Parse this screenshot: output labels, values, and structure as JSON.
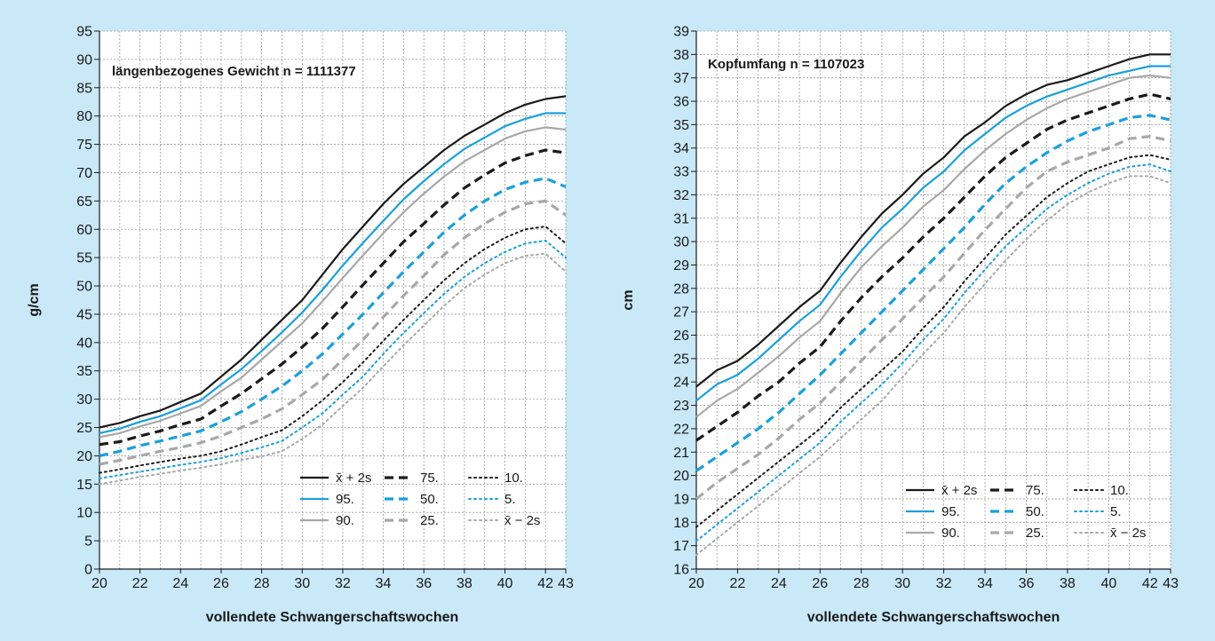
{
  "chart_data": [
    {
      "type": "line",
      "title": "längenbezogenes Gewicht n = 1111377",
      "xlabel": "vollendete Schwangerschaftswochen",
      "ylabel": "g/cm",
      "xlim": [
        20,
        43
      ],
      "ylim": [
        0,
        95
      ],
      "x_ticks": [
        "20",
        "22",
        "24",
        "26",
        "28",
        "30",
        "32",
        "34",
        "36",
        "38",
        "40",
        "42",
        "43"
      ],
      "y_ticks": [
        "0",
        "5",
        "10",
        "15",
        "20",
        "25",
        "30",
        "35",
        "40",
        "45",
        "50",
        "55",
        "60",
        "65",
        "70",
        "75",
        "80",
        "85",
        "90",
        "95"
      ],
      "grid": true,
      "legend_position": "bottom-right",
      "x": [
        20,
        21,
        22,
        23,
        24,
        25,
        26,
        27,
        28,
        29,
        30,
        31,
        32,
        33,
        34,
        35,
        36,
        37,
        38,
        39,
        40,
        41,
        42,
        43
      ],
      "series": [
        {
          "name": "x̄ + 2s",
          "color": "#1a1a1a",
          "dash": "solid",
          "values": [
            25,
            25.8,
            27,
            28,
            29.5,
            31,
            34,
            37,
            40.5,
            44,
            47.5,
            52,
            56.5,
            60.5,
            64.5,
            68,
            71,
            74,
            76.5,
            78.5,
            80.5,
            82,
            83,
            83.5
          ]
        },
        {
          "name": "95.",
          "color": "#1aa0dc",
          "dash": "solid",
          "values": [
            24,
            24.8,
            26,
            27,
            28.4,
            29.8,
            32.6,
            35.3,
            38.5,
            41.8,
            45.3,
            49.3,
            53.6,
            57.6,
            61.5,
            65.3,
            68.5,
            71.5,
            74.2,
            76.2,
            78.2,
            79.5,
            80.5,
            80.5
          ]
        },
        {
          "name": "90.",
          "color": "#a8a8a8",
          "dash": "solid",
          "values": [
            23.3,
            24,
            25.2,
            26.2,
            27.5,
            28.8,
            31.4,
            33.8,
            37,
            40.2,
            43.4,
            47.3,
            51.4,
            55.4,
            59.3,
            63,
            66.3,
            69.3,
            72,
            74,
            76,
            77.3,
            78,
            77.6
          ]
        },
        {
          "name": "75.",
          "color": "#1a1a1a",
          "dash": "dash-heavy",
          "values": [
            22,
            22.5,
            23.5,
            24.4,
            25.5,
            26.5,
            28.8,
            31,
            33.6,
            36.2,
            39.2,
            42.5,
            46.3,
            50.2,
            54,
            57.8,
            61,
            64.3,
            67.3,
            69.6,
            71.7,
            73,
            74,
            73.5
          ]
        },
        {
          "name": "50.",
          "color": "#1aa0dc",
          "dash": "dash-heavy",
          "values": [
            20,
            20.8,
            21.8,
            22.6,
            23.5,
            24.4,
            26,
            27.8,
            30,
            32.3,
            35,
            38,
            41.5,
            45,
            48.8,
            52.5,
            56,
            59.5,
            62.5,
            65,
            67,
            68.3,
            69,
            67.5
          ]
        },
        {
          "name": "25.",
          "color": "#a8a8a8",
          "dash": "dash-heavy",
          "values": [
            18.5,
            19.2,
            20,
            20.8,
            21.5,
            22.3,
            23.5,
            25,
            26.5,
            28.3,
            30.8,
            33.5,
            37,
            40.5,
            44.5,
            48.3,
            51.8,
            55.5,
            58.5,
            61,
            63,
            64.5,
            65,
            62.5
          ]
        },
        {
          "name": "10.",
          "color": "#1a1a1a",
          "dash": "dotted",
          "values": [
            17,
            17.6,
            18.3,
            18.9,
            19.5,
            20,
            20.8,
            22,
            23.3,
            24.5,
            27,
            29.8,
            33,
            36.5,
            40.3,
            44,
            47.5,
            51,
            54,
            56.5,
            58.5,
            60,
            60.5,
            57.5
          ]
        },
        {
          "name": "5.",
          "color": "#1aa0dc",
          "dash": "dotted",
          "values": [
            16,
            16.6,
            17.2,
            17.8,
            18.4,
            18.9,
            19.6,
            20.5,
            21.5,
            22.6,
            25,
            27.5,
            30.8,
            34,
            38,
            41.7,
            45.2,
            48.6,
            51.6,
            54,
            56,
            57.5,
            58,
            55
          ]
        },
        {
          "name": "x̄ − 2s",
          "color": "#a8a8a8",
          "dash": "dotted",
          "values": [
            15,
            15.6,
            16.3,
            16.8,
            17.4,
            17.9,
            18.5,
            19.3,
            19.9,
            20.8,
            23,
            25.5,
            28.8,
            32,
            35.8,
            39.5,
            43,
            46.5,
            49.6,
            52,
            54,
            55.3,
            55.7,
            52.5
          ]
        }
      ]
    },
    {
      "type": "line",
      "title": "Kopfumfang n = 1107023",
      "xlabel": "vollendete Schwangerschaftswochen",
      "ylabel": "cm",
      "xlim": [
        20,
        43
      ],
      "ylim": [
        16,
        39
      ],
      "x_ticks": [
        "20",
        "22",
        "24",
        "26",
        "28",
        "30",
        "32",
        "34",
        "36",
        "38",
        "40",
        "42",
        "43"
      ],
      "y_ticks": [
        "16",
        "17",
        "18",
        "19",
        "20",
        "21",
        "22",
        "23",
        "24",
        "25",
        "26",
        "27",
        "28",
        "29",
        "30",
        "31",
        "32",
        "33",
        "34",
        "35",
        "36",
        "37",
        "38",
        "39"
      ],
      "grid": true,
      "legend_position": "bottom-right",
      "x": [
        20,
        21,
        22,
        23,
        24,
        25,
        26,
        27,
        28,
        29,
        30,
        31,
        32,
        33,
        34,
        35,
        36,
        37,
        38,
        39,
        40,
        41,
        42,
        43
      ],
      "series": [
        {
          "name": "x̄ + 2s",
          "color": "#1a1a1a",
          "dash": "solid",
          "values": [
            23.8,
            24.5,
            24.9,
            25.6,
            26.4,
            27.2,
            27.9,
            29.1,
            30.2,
            31.2,
            32,
            32.9,
            33.6,
            34.5,
            35.1,
            35.8,
            36.3,
            36.7,
            36.9,
            37.2,
            37.5,
            37.8,
            38,
            38
          ]
        },
        {
          "name": "95.",
          "color": "#1aa0dc",
          "dash": "solid",
          "values": [
            23.2,
            23.9,
            24.3,
            25,
            25.8,
            26.6,
            27.3,
            28.5,
            29.6,
            30.6,
            31.4,
            32.3,
            33,
            33.9,
            34.6,
            35.3,
            35.8,
            36.2,
            36.5,
            36.8,
            37.1,
            37.3,
            37.5,
            37.5
          ]
        },
        {
          "name": "90.",
          "color": "#a8a8a8",
          "dash": "solid",
          "values": [
            22.5,
            23.2,
            23.7,
            24.4,
            25.1,
            25.9,
            26.6,
            27.8,
            28.9,
            29.8,
            30.6,
            31.5,
            32.2,
            33.1,
            33.9,
            34.6,
            35.2,
            35.7,
            36.1,
            36.4,
            36.7,
            37,
            37.1,
            37
          ]
        },
        {
          "name": "75.",
          "color": "#1a1a1a",
          "dash": "dash-heavy",
          "values": [
            21.5,
            22.1,
            22.7,
            23.4,
            24,
            24.8,
            25.5,
            26.6,
            27.6,
            28.5,
            29.3,
            30.2,
            31,
            31.9,
            32.8,
            33.6,
            34.2,
            34.8,
            35.2,
            35.5,
            35.8,
            36.1,
            36.3,
            36.1
          ]
        },
        {
          "name": "50.",
          "color": "#1aa0dc",
          "dash": "dash-heavy",
          "values": [
            20.2,
            20.8,
            21.4,
            22,
            22.7,
            23.5,
            24.3,
            25.2,
            26.1,
            27,
            27.9,
            28.8,
            29.7,
            30.6,
            31.6,
            32.5,
            33.2,
            33.8,
            34.3,
            34.7,
            35,
            35.3,
            35.4,
            35.2
          ]
        },
        {
          "name": "25.",
          "color": "#a8a8a8",
          "dash": "dash-heavy",
          "values": [
            19,
            19.7,
            20.3,
            20.9,
            21.6,
            22.4,
            23.1,
            24,
            24.9,
            25.8,
            26.7,
            27.6,
            28.5,
            29.5,
            30.5,
            31.4,
            32.3,
            33,
            33.4,
            33.7,
            34,
            34.4,
            34.5,
            34.3
          ]
        },
        {
          "name": "10.",
          "color": "#1a1a1a",
          "dash": "dotted",
          "values": [
            17.8,
            18.5,
            19.2,
            19.9,
            20.6,
            21.3,
            22,
            22.9,
            23.7,
            24.5,
            25.3,
            26.3,
            27.2,
            28.3,
            29.3,
            30.3,
            31.1,
            31.9,
            32.5,
            33,
            33.3,
            33.6,
            33.7,
            33.5
          ]
        },
        {
          "name": "5.",
          "color": "#1aa0dc",
          "dash": "dotted",
          "values": [
            17.2,
            17.9,
            18.6,
            19.3,
            20,
            20.7,
            21.4,
            22.3,
            23.1,
            23.9,
            24.8,
            25.8,
            26.7,
            27.8,
            28.8,
            29.8,
            30.6,
            31.4,
            32,
            32.5,
            32.9,
            33.2,
            33.3,
            33
          ]
        },
        {
          "name": "x̄ − 2s",
          "color": "#a8a8a8",
          "dash": "dotted",
          "values": [
            16.6,
            17.3,
            18,
            18.7,
            19.4,
            20.1,
            20.8,
            21.6,
            22.4,
            23.2,
            24.2,
            25.2,
            26.1,
            27.2,
            28.2,
            29.2,
            30.1,
            30.9,
            31.6,
            32.1,
            32.5,
            32.8,
            32.8,
            32.5
          ]
        }
      ]
    }
  ]
}
